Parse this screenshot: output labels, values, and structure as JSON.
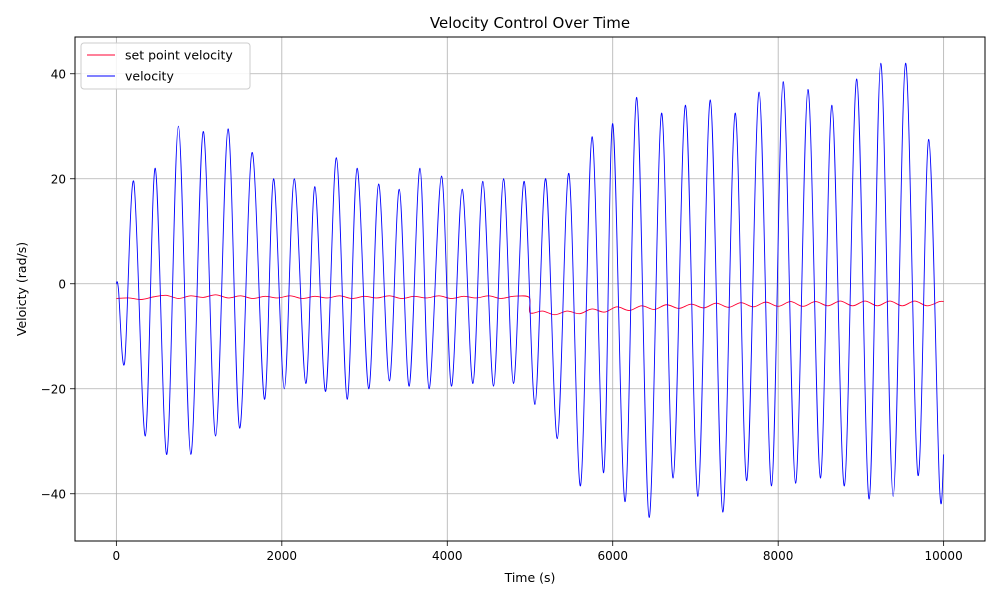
{
  "chart_data": {
    "type": "line",
    "title": "Velocity Control Over Time",
    "xlabel": "Time (s)",
    "ylabel": "Veloicty (rad/s)",
    "xlim": [
      -500,
      10500
    ],
    "ylim": [
      -49,
      47
    ],
    "xticks": [
      0,
      2000,
      4000,
      6000,
      8000,
      10000
    ],
    "yticks": [
      -40,
      -20,
      0,
      20,
      40
    ],
    "grid": true,
    "legend": "upper-left",
    "colors": {
      "setpoint": "#ff0033",
      "velocity": "#0000ff",
      "grid": "#b0b0b0"
    },
    "series": [
      {
        "name": "set point velocity",
        "color": "#ff0033",
        "x": [
          0,
          150,
          300,
          450,
          600,
          750,
          900,
          1050,
          1200,
          1350,
          1500,
          1650,
          1800,
          1950,
          2100,
          2250,
          2400,
          2550,
          2700,
          2850,
          3000,
          3150,
          3300,
          3450,
          3600,
          3750,
          3900,
          4050,
          4200,
          4350,
          4500,
          4650,
          4800,
          4990,
          5000,
          5150,
          5300,
          5450,
          5600,
          5750,
          5900,
          6050,
          6200,
          6350,
          6500,
          6650,
          6800,
          6950,
          7100,
          7250,
          7400,
          7550,
          7700,
          7850,
          8000,
          8150,
          8300,
          8450,
          8600,
          8750,
          8900,
          9050,
          9200,
          9350,
          9500,
          9650,
          9800,
          9950,
          10000
        ],
        "values": [
          -2.8,
          -2.7,
          -3.0,
          -2.5,
          -2.2,
          -2.8,
          -2.3,
          -2.6,
          -2.1,
          -2.7,
          -2.3,
          -2.8,
          -2.4,
          -2.7,
          -2.3,
          -2.8,
          -2.4,
          -2.7,
          -2.3,
          -2.8,
          -2.4,
          -2.7,
          -2.3,
          -2.8,
          -2.4,
          -2.7,
          -2.3,
          -2.8,
          -2.4,
          -2.7,
          -2.3,
          -2.8,
          -2.4,
          -2.6,
          -5.5,
          -5.2,
          -5.9,
          -5.2,
          -5.7,
          -4.8,
          -5.4,
          -4.4,
          -5.1,
          -4.2,
          -4.9,
          -4.0,
          -4.7,
          -3.9,
          -4.6,
          -3.7,
          -4.5,
          -3.6,
          -4.4,
          -3.5,
          -4.3,
          -3.4,
          -4.3,
          -3.4,
          -4.2,
          -3.3,
          -4.2,
          -3.3,
          -4.2,
          -3.3,
          -4.2,
          -3.3,
          -4.2,
          -3.4,
          -3.4
        ]
      },
      {
        "name": "velocity",
        "color": "#0000ff",
        "x": [
          0,
          25,
          100,
          210,
          350,
          470,
          610,
          750,
          900,
          1050,
          1200,
          1350,
          1490,
          1640,
          1790,
          1900,
          2030,
          2150,
          2290,
          2400,
          2530,
          2660,
          2790,
          2910,
          3050,
          3170,
          3300,
          3420,
          3540,
          3670,
          3780,
          3930,
          4050,
          4180,
          4310,
          4430,
          4560,
          4680,
          4800,
          4930,
          5060,
          5190,
          5330,
          5470,
          5610,
          5750,
          5890,
          6000,
          6150,
          6290,
          6440,
          6590,
          6730,
          6880,
          7030,
          7180,
          7330,
          7480,
          7620,
          7770,
          7920,
          8060,
          8210,
          8360,
          8510,
          8650,
          8800,
          8950,
          9100,
          9240,
          9390,
          9540,
          9690,
          9820,
          9950,
          10000
        ],
        "values": [
          0,
          -1,
          -15,
          19.5,
          -29,
          22,
          -32.5,
          30,
          -32.5,
          29,
          -29,
          29.5,
          -27.5,
          25,
          -22,
          20,
          -20,
          20,
          -19,
          18.5,
          -20.5,
          24,
          -22,
          22,
          -20,
          19,
          -18.5,
          18,
          -19.5,
          22,
          -20,
          20.5,
          -19.5,
          18,
          -19,
          19.5,
          -19.5,
          20,
          -19,
          19.5,
          -23,
          20,
          -29.5,
          21,
          -38.5,
          28,
          -36,
          30.5,
          -41.5,
          35.5,
          -44.5,
          32.5,
          -37,
          34,
          -40.5,
          35,
          -43.5,
          32.5,
          -37.5,
          36.5,
          -38.5,
          38.5,
          -38,
          37,
          -37,
          34,
          -38.5,
          39,
          -41,
          42,
          -40.5,
          42,
          -36.5,
          27.5,
          -38.5,
          -32.5
        ]
      }
    ]
  }
}
